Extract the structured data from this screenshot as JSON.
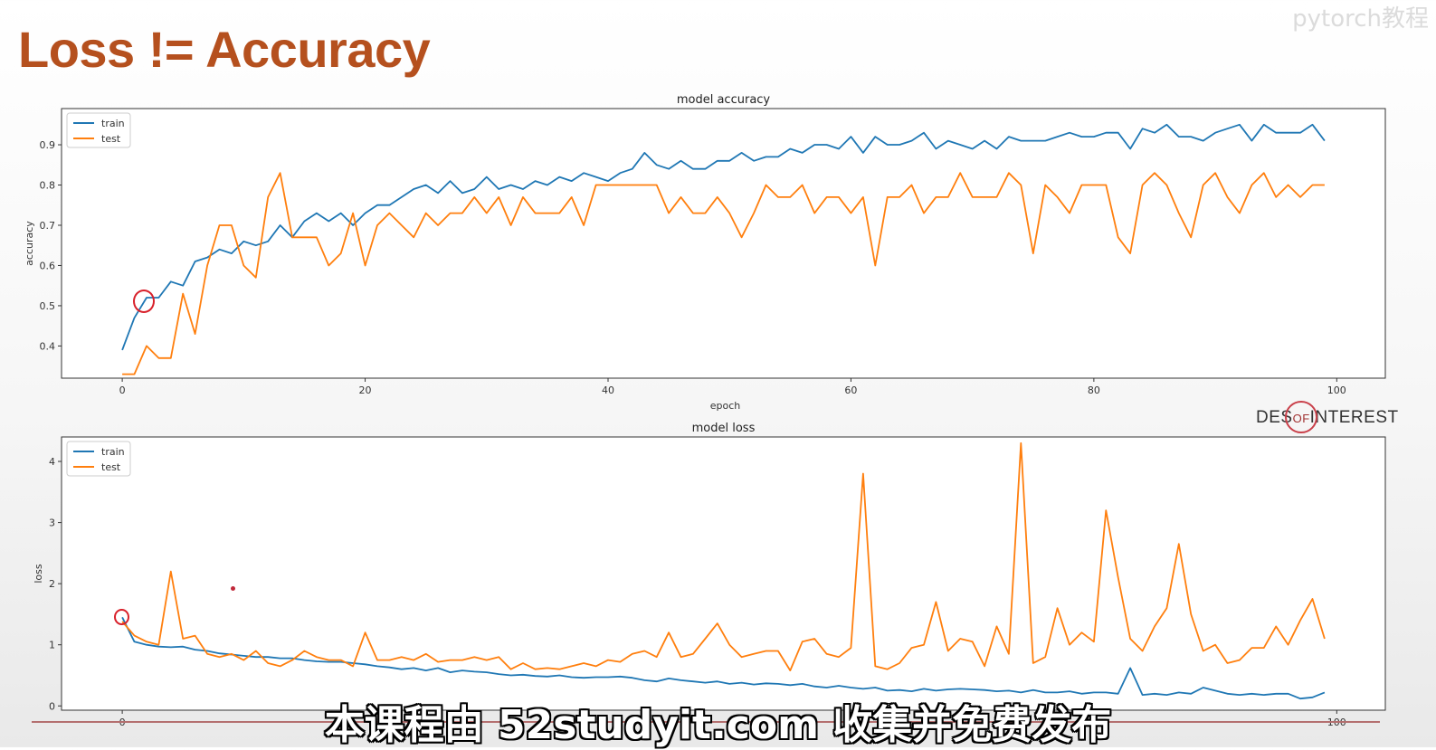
{
  "slide": {
    "title": "Loss != Accuracy"
  },
  "watermark": "pytorch教程",
  "brand": {
    "left": "DES",
    "of": "OF",
    "right": "INTEREST"
  },
  "subtitle": "本课程由 52studyit.com 收集并免费发布",
  "colors": {
    "train": "#1f77b4",
    "test": "#ff7f0e",
    "title": "#b5501e"
  },
  "chart_data": [
    {
      "type": "line",
      "title": "model accuracy",
      "xlabel": "epoch",
      "ylabel": "accuracy",
      "xlim": [
        -5,
        104
      ],
      "ylim": [
        0.32,
        0.99
      ],
      "xticks": [
        0,
        20,
        40,
        60,
        80,
        100
      ],
      "yticks": [
        0.4,
        0.5,
        0.6,
        0.7,
        0.8,
        0.9
      ],
      "ytick_labels": [
        "0.4",
        "0.5",
        "0.6",
        "0.7",
        "0.8",
        "0.9"
      ],
      "legend": "upper left",
      "grid": false,
      "x": [
        0,
        1,
        2,
        3,
        4,
        5,
        6,
        7,
        8,
        9,
        10,
        11,
        12,
        13,
        14,
        15,
        16,
        17,
        18,
        19,
        20,
        21,
        22,
        23,
        24,
        25,
        26,
        27,
        28,
        29,
        30,
        31,
        32,
        33,
        34,
        35,
        36,
        37,
        38,
        39,
        40,
        41,
        42,
        43,
        44,
        45,
        46,
        47,
        48,
        49,
        50,
        51,
        52,
        53,
        54,
        55,
        56,
        57,
        58,
        59,
        60,
        61,
        62,
        63,
        64,
        65,
        66,
        67,
        68,
        69,
        70,
        71,
        72,
        73,
        74,
        75,
        76,
        77,
        78,
        79,
        80,
        81,
        82,
        83,
        84,
        85,
        86,
        87,
        88,
        89,
        90,
        91,
        92,
        93,
        94,
        95,
        96,
        97,
        98,
        99
      ],
      "series": [
        {
          "name": "train",
          "values": [
            0.39,
            0.47,
            0.52,
            0.52,
            0.56,
            0.55,
            0.61,
            0.62,
            0.64,
            0.63,
            0.66,
            0.65,
            0.66,
            0.7,
            0.67,
            0.71,
            0.73,
            0.71,
            0.73,
            0.7,
            0.73,
            0.75,
            0.75,
            0.77,
            0.79,
            0.8,
            0.78,
            0.81,
            0.78,
            0.79,
            0.82,
            0.79,
            0.8,
            0.79,
            0.81,
            0.8,
            0.82,
            0.81,
            0.83,
            0.82,
            0.81,
            0.83,
            0.84,
            0.88,
            0.85,
            0.84,
            0.86,
            0.84,
            0.84,
            0.86,
            0.86,
            0.88,
            0.86,
            0.87,
            0.87,
            0.89,
            0.88,
            0.9,
            0.9,
            0.89,
            0.92,
            0.88,
            0.92,
            0.9,
            0.9,
            0.91,
            0.93,
            0.89,
            0.91,
            0.9,
            0.89,
            0.91,
            0.89,
            0.92,
            0.91,
            0.91,
            0.91,
            0.92,
            0.93,
            0.92,
            0.92,
            0.93,
            0.93,
            0.89,
            0.94,
            0.93,
            0.95,
            0.92,
            0.92,
            0.91,
            0.93,
            0.94,
            0.95,
            0.91,
            0.95,
            0.93,
            0.93,
            0.93,
            0.95,
            0.91
          ]
        },
        {
          "name": "test",
          "values": [
            0.33,
            0.33,
            0.4,
            0.37,
            0.37,
            0.53,
            0.43,
            0.6,
            0.7,
            0.7,
            0.6,
            0.57,
            0.77,
            0.83,
            0.67,
            0.67,
            0.67,
            0.6,
            0.63,
            0.73,
            0.6,
            0.7,
            0.73,
            0.7,
            0.67,
            0.73,
            0.7,
            0.73,
            0.73,
            0.77,
            0.73,
            0.77,
            0.7,
            0.77,
            0.73,
            0.73,
            0.73,
            0.77,
            0.7,
            0.8,
            0.8,
            0.8,
            0.8,
            0.8,
            0.8,
            0.73,
            0.77,
            0.73,
            0.73,
            0.77,
            0.73,
            0.67,
            0.73,
            0.8,
            0.77,
            0.77,
            0.8,
            0.73,
            0.77,
            0.77,
            0.73,
            0.77,
            0.6,
            0.77,
            0.77,
            0.8,
            0.73,
            0.77,
            0.77,
            0.83,
            0.77,
            0.77,
            0.77,
            0.83,
            0.8,
            0.63,
            0.8,
            0.77,
            0.73,
            0.8,
            0.8,
            0.8,
            0.67,
            0.63,
            0.8,
            0.83,
            0.8,
            0.73,
            0.67,
            0.8,
            0.83,
            0.77,
            0.73,
            0.8,
            0.83,
            0.77,
            0.8,
            0.77,
            0.8,
            0.8
          ]
        }
      ]
    },
    {
      "type": "line",
      "title": "model loss",
      "xlabel": "",
      "ylabel": "loss",
      "xlim": [
        -5,
        104
      ],
      "ylim": [
        -0.07,
        4.4
      ],
      "xticks": [
        0,
        100
      ],
      "yticks": [
        0,
        1,
        2,
        3,
        4
      ],
      "ytick_labels": [
        "0",
        "1",
        "2",
        "3",
        "4"
      ],
      "legend": "upper left",
      "grid": false,
      "x": [
        0,
        1,
        2,
        3,
        4,
        5,
        6,
        7,
        8,
        9,
        10,
        11,
        12,
        13,
        14,
        15,
        16,
        17,
        18,
        19,
        20,
        21,
        22,
        23,
        24,
        25,
        26,
        27,
        28,
        29,
        30,
        31,
        32,
        33,
        34,
        35,
        36,
        37,
        38,
        39,
        40,
        41,
        42,
        43,
        44,
        45,
        46,
        47,
        48,
        49,
        50,
        51,
        52,
        53,
        54,
        55,
        56,
        57,
        58,
        59,
        60,
        61,
        62,
        63,
        64,
        65,
        66,
        67,
        68,
        69,
        70,
        71,
        72,
        73,
        74,
        75,
        76,
        77,
        78,
        79,
        80,
        81,
        82,
        83,
        84,
        85,
        86,
        87,
        88,
        89,
        90,
        91,
        92,
        93,
        94,
        95,
        96,
        97,
        98,
        99
      ],
      "series": [
        {
          "name": "train",
          "values": [
            1.45,
            1.05,
            1.0,
            0.97,
            0.96,
            0.97,
            0.92,
            0.9,
            0.86,
            0.84,
            0.82,
            0.8,
            0.8,
            0.78,
            0.78,
            0.75,
            0.73,
            0.72,
            0.72,
            0.7,
            0.68,
            0.65,
            0.63,
            0.6,
            0.62,
            0.58,
            0.62,
            0.55,
            0.58,
            0.56,
            0.55,
            0.52,
            0.5,
            0.51,
            0.49,
            0.48,
            0.5,
            0.47,
            0.46,
            0.47,
            0.47,
            0.48,
            0.46,
            0.42,
            0.4,
            0.45,
            0.42,
            0.4,
            0.38,
            0.4,
            0.36,
            0.38,
            0.35,
            0.37,
            0.36,
            0.34,
            0.36,
            0.32,
            0.3,
            0.33,
            0.3,
            0.28,
            0.3,
            0.25,
            0.26,
            0.24,
            0.28,
            0.25,
            0.27,
            0.28,
            0.27,
            0.26,
            0.24,
            0.25,
            0.22,
            0.26,
            0.22,
            0.22,
            0.24,
            0.2,
            0.22,
            0.22,
            0.2,
            0.62,
            0.18,
            0.2,
            0.18,
            0.22,
            0.2,
            0.3,
            0.25,
            0.2,
            0.18,
            0.2,
            0.18,
            0.2,
            0.2,
            0.12,
            0.14,
            0.22
          ]
        },
        {
          "name": "test",
          "values": [
            1.38,
            1.15,
            1.05,
            1.0,
            2.2,
            1.1,
            1.15,
            0.85,
            0.8,
            0.85,
            0.75,
            0.9,
            0.7,
            0.65,
            0.75,
            0.9,
            0.8,
            0.75,
            0.75,
            0.65,
            1.2,
            0.75,
            0.75,
            0.8,
            0.75,
            0.85,
            0.72,
            0.75,
            0.75,
            0.8,
            0.75,
            0.8,
            0.6,
            0.7,
            0.6,
            0.62,
            0.6,
            0.65,
            0.7,
            0.65,
            0.75,
            0.72,
            0.85,
            0.9,
            0.8,
            1.2,
            0.8,
            0.85,
            1.1,
            1.35,
            1.0,
            0.8,
            0.85,
            0.9,
            0.9,
            0.58,
            1.05,
            1.1,
            0.85,
            0.8,
            0.95,
            3.8,
            0.65,
            0.6,
            0.7,
            0.95,
            1.0,
            1.7,
            0.9,
            1.1,
            1.05,
            0.65,
            1.3,
            0.85,
            4.3,
            0.7,
            0.8,
            1.6,
            1.0,
            1.2,
            1.05,
            3.2,
            2.1,
            1.1,
            0.9,
            1.3,
            1.6,
            2.65,
            1.5,
            0.9,
            1.0,
            0.7,
            0.75,
            0.95,
            0.95,
            1.3,
            1.0,
            1.4,
            1.75,
            1.1
          ]
        }
      ]
    }
  ]
}
